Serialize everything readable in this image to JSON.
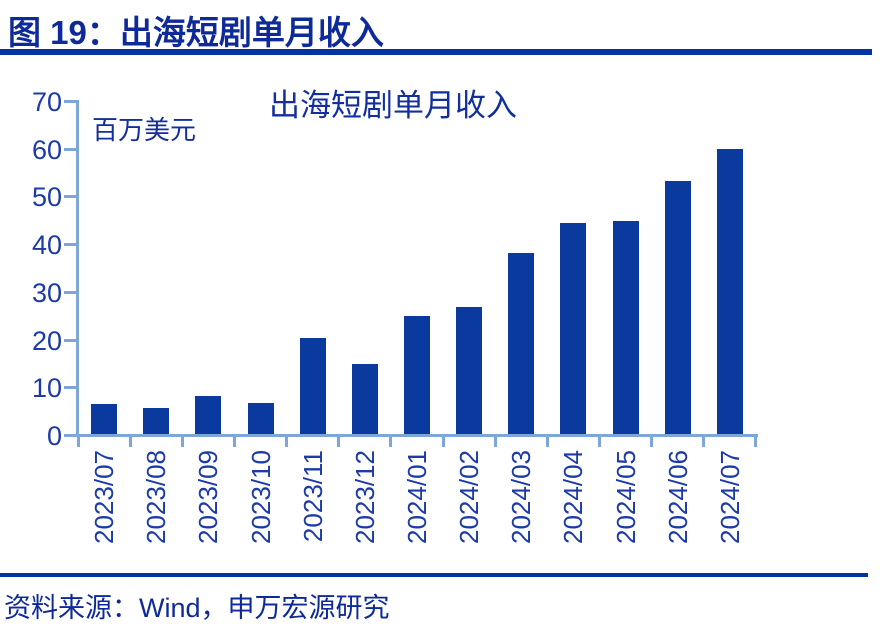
{
  "header": {
    "title": "图 19：出海短剧单月收入"
  },
  "footer": {
    "source": "资料来源：Wind，申万宏源研究"
  },
  "colors": {
    "title_navy": "#0E2A99",
    "rule_blue": "#0434A4",
    "bar_blue": "#0A3A9E",
    "axis_light_blue": "#7EA6D8",
    "tick_label_blue": "#1C3BA8"
  },
  "chart_data": {
    "type": "bar",
    "title": "出海短剧单月收入",
    "unit_label": "百万美元",
    "xlabel": "",
    "ylabel": "百万美元",
    "categories": [
      "2023/07",
      "2023/08",
      "2023/09",
      "2023/10",
      "2023/11",
      "2023/12",
      "2024/01",
      "2024/02",
      "2024/03",
      "2024/04",
      "2024/05",
      "2024/06",
      "2024/07"
    ],
    "values": [
      6.3,
      5.5,
      7.9,
      6.4,
      20.2,
      14.7,
      24.7,
      26.7,
      38.0,
      44.2,
      44.6,
      53.0,
      59.8
    ],
    "ylim": [
      0,
      70
    ],
    "yticks": [
      0,
      10,
      20,
      30,
      40,
      50,
      60,
      70
    ],
    "grid": false,
    "legend": false,
    "bar_color": "#0A3A9E"
  }
}
